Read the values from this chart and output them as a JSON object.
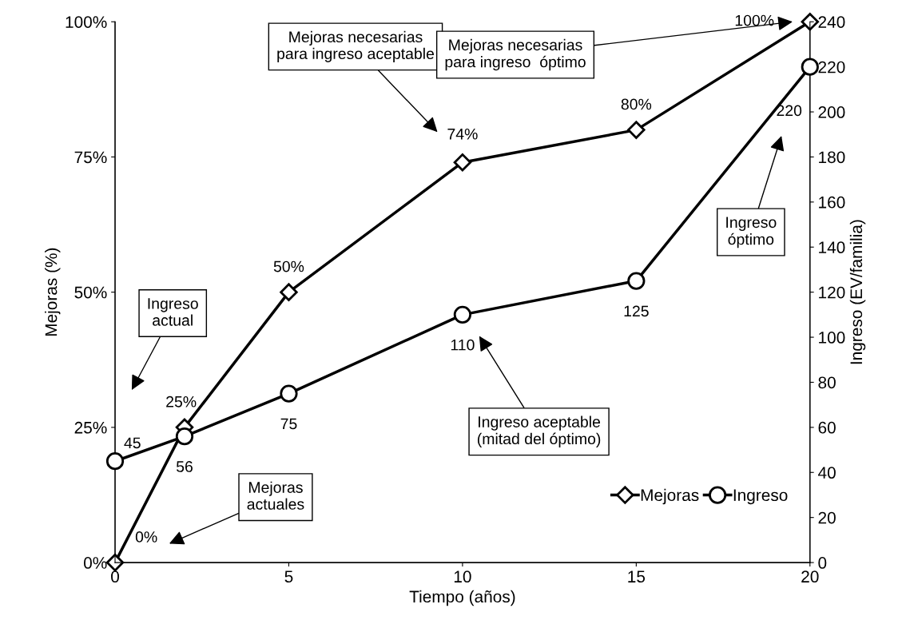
{
  "chart_data": {
    "type": "line",
    "xlabel": "Tiempo (años)",
    "ylabel": "Mejoras (%)",
    "y2label": "Ingreso (EV/familia)",
    "xlim": [
      0,
      20
    ],
    "xticks": [
      0,
      5,
      10,
      15,
      20
    ],
    "ylim": [
      0,
      100
    ],
    "yticks": [
      {
        "value": 0,
        "label": "0%"
      },
      {
        "value": 25,
        "label": "25%"
      },
      {
        "value": 50,
        "label": "50%"
      },
      {
        "value": 75,
        "label": "75%"
      },
      {
        "value": 100,
        "label": "100%"
      }
    ],
    "y2lim": [
      0,
      240
    ],
    "y2ticks": [
      0,
      20,
      40,
      60,
      80,
      100,
      120,
      140,
      160,
      180,
      200,
      220,
      240
    ],
    "series": [
      {
        "name": "Mejoras",
        "color": "#000000",
        "marker": "diamond",
        "x": [
          0,
          2,
          5,
          10,
          15,
          20
        ],
        "values": [
          0,
          25,
          50,
          74,
          80,
          100
        ],
        "value_labels": [
          "0%",
          "25%",
          "50%",
          "74%",
          "80%",
          "100%"
        ]
      },
      {
        "name": "Ingreso",
        "color": "#000000",
        "marker": "circle",
        "axis": "y2",
        "x": [
          0,
          2,
          5,
          10,
          15,
          20
        ],
        "values": [
          45,
          56,
          75,
          110,
          125,
          220
        ],
        "data_labels": true
      }
    ],
    "annotations": [
      "Mejoras\nactuales",
      "Ingreso\nactual",
      "Mejoras necesarias\npara ingreso aceptable",
      "Mejoras necesarias\npara ingreso  óptimo",
      "Ingreso\nóptimo",
      "Ingreso aceptable\n(mitad del óptimo)"
    ],
    "legend": "bottom right",
    "grid": false
  }
}
